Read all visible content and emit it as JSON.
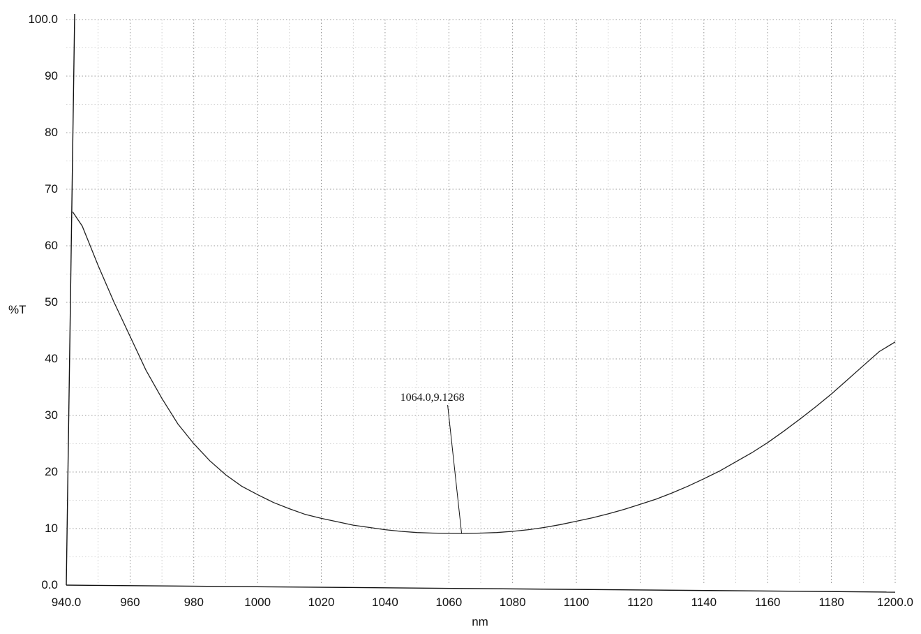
{
  "chart_data": {
    "type": "line",
    "title": "",
    "xlabel": "nm",
    "ylabel": "%T",
    "xlim": [
      940,
      1200
    ],
    "ylim": [
      0,
      100
    ],
    "x_ticks": [
      940,
      960,
      980,
      1000,
      1020,
      1040,
      1060,
      1080,
      1100,
      1120,
      1140,
      1160,
      1180,
      1200
    ],
    "x_tick_labels": [
      "940.0",
      "960",
      "980",
      "1000",
      "1020",
      "1040",
      "1060",
      "1080",
      "1100",
      "1120",
      "1140",
      "1160",
      "1180",
      "1200.0"
    ],
    "y_ticks": [
      0,
      10,
      20,
      30,
      40,
      50,
      60,
      70,
      80,
      90,
      100
    ],
    "y_tick_labels": [
      "0.0",
      "10",
      "20",
      "30",
      "40",
      "50",
      "60",
      "70",
      "80",
      "90",
      "100.0"
    ],
    "grid": true,
    "grid_style": "dotted",
    "legend": "none",
    "line_color": "#222222",
    "series": [
      {
        "x": [
          942,
          945,
          950,
          955,
          960,
          965,
          970,
          975,
          980,
          985,
          990,
          995,
          1000,
          1005,
          1010,
          1015,
          1020,
          1025,
          1030,
          1035,
          1040,
          1045,
          1050,
          1055,
          1060,
          1065,
          1070,
          1075,
          1080,
          1085,
          1090,
          1095,
          1100,
          1105,
          1110,
          1115,
          1120,
          1125,
          1130,
          1135,
          1140,
          1145,
          1150,
          1155,
          1160,
          1165,
          1170,
          1175,
          1180,
          1185,
          1190,
          1195,
          1200
        ],
        "y": [
          66.0,
          63.5,
          56.5,
          50.0,
          44.0,
          38.0,
          33.0,
          28.5,
          25.0,
          22.0,
          19.5,
          17.5,
          16.0,
          14.6,
          13.5,
          12.5,
          11.8,
          11.2,
          10.6,
          10.2,
          9.8,
          9.5,
          9.3,
          9.2,
          9.15,
          9.13,
          9.2,
          9.3,
          9.5,
          9.8,
          10.2,
          10.7,
          11.3,
          11.9,
          12.6,
          13.4,
          14.3,
          15.2,
          16.3,
          17.5,
          18.8,
          20.2,
          21.8,
          23.4,
          25.2,
          27.2,
          29.3,
          31.5,
          33.8,
          36.3,
          38.8,
          41.3,
          43.0
        ]
      }
    ],
    "annotations": [
      {
        "text": "1064.0,9.1268",
        "x": 1064.0,
        "y": 9.1268
      }
    ]
  }
}
